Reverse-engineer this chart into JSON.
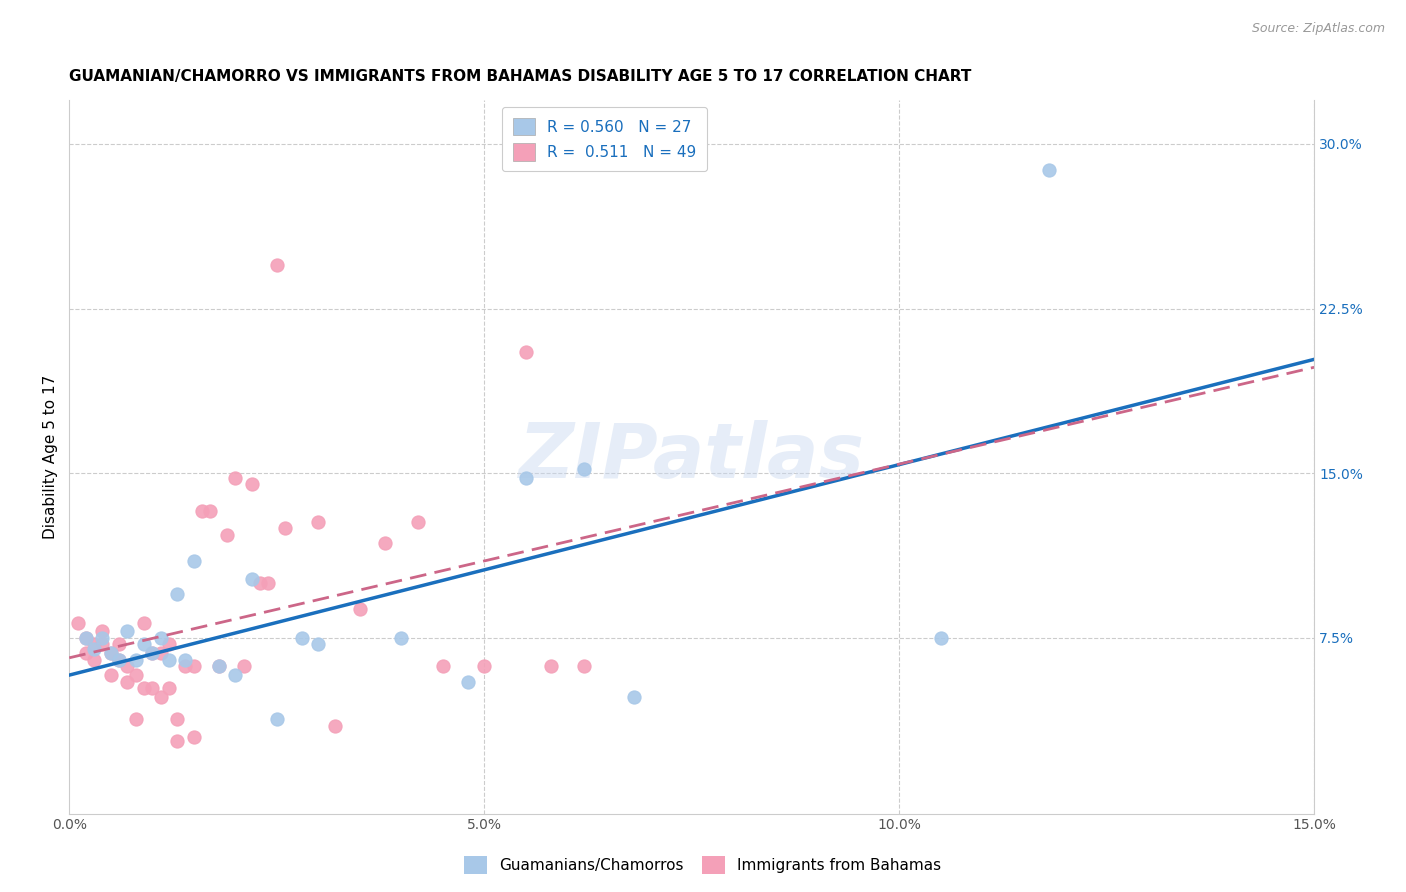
{
  "title": "GUAMANIAN/CHAMORRO VS IMMIGRANTS FROM BAHAMAS DISABILITY AGE 5 TO 17 CORRELATION CHART",
  "source": "Source: ZipAtlas.com",
  "ylabel": "Disability Age 5 to 17",
  "xlim": [
    0.0,
    0.15
  ],
  "ylim": [
    -0.005,
    0.32
  ],
  "xticks": [
    0.0,
    0.05,
    0.1,
    0.15
  ],
  "xticklabels": [
    "0.0%",
    "5.0%",
    "10.0%",
    "15.0%"
  ],
  "yticks_right": [
    0.075,
    0.15,
    0.225,
    0.3
  ],
  "ytick_right_labels": [
    "7.5%",
    "15.0%",
    "22.5%",
    "30.0%"
  ],
  "guamanian_color": "#a8c8e8",
  "bahamas_color": "#f4a0b8",
  "line_guamanian_color": "#1a6fbd",
  "line_bahamas_color": "#cc6688",
  "R_guamanian": 0.56,
  "N_guamanian": 27,
  "R_bahamas": 0.511,
  "N_bahamas": 49,
  "guamanian_x": [
    0.002,
    0.003,
    0.004,
    0.005,
    0.006,
    0.007,
    0.008,
    0.009,
    0.01,
    0.011,
    0.012,
    0.013,
    0.014,
    0.015,
    0.018,
    0.02,
    0.022,
    0.025,
    0.028,
    0.03,
    0.04,
    0.048,
    0.055,
    0.062,
    0.068,
    0.105,
    0.118
  ],
  "guamanian_y": [
    0.075,
    0.07,
    0.075,
    0.068,
    0.065,
    0.078,
    0.065,
    0.072,
    0.068,
    0.075,
    0.065,
    0.095,
    0.065,
    0.11,
    0.062,
    0.058,
    0.102,
    0.038,
    0.075,
    0.072,
    0.075,
    0.055,
    0.148,
    0.152,
    0.048,
    0.075,
    0.288
  ],
  "bahamas_x": [
    0.001,
    0.002,
    0.002,
    0.003,
    0.003,
    0.004,
    0.004,
    0.005,
    0.005,
    0.006,
    0.006,
    0.007,
    0.007,
    0.008,
    0.008,
    0.009,
    0.009,
    0.01,
    0.01,
    0.011,
    0.011,
    0.012,
    0.012,
    0.013,
    0.013,
    0.014,
    0.015,
    0.015,
    0.016,
    0.017,
    0.018,
    0.019,
    0.02,
    0.021,
    0.022,
    0.023,
    0.024,
    0.025,
    0.026,
    0.03,
    0.032,
    0.035,
    0.038,
    0.042,
    0.045,
    0.05,
    0.055,
    0.058,
    0.062
  ],
  "bahamas_y": [
    0.082,
    0.075,
    0.068,
    0.072,
    0.065,
    0.078,
    0.072,
    0.068,
    0.058,
    0.065,
    0.072,
    0.062,
    0.055,
    0.058,
    0.038,
    0.082,
    0.052,
    0.068,
    0.052,
    0.048,
    0.068,
    0.072,
    0.052,
    0.038,
    0.028,
    0.062,
    0.062,
    0.03,
    0.133,
    0.133,
    0.062,
    0.122,
    0.148,
    0.062,
    0.145,
    0.1,
    0.1,
    0.245,
    0.125,
    0.128,
    0.035,
    0.088,
    0.118,
    0.128,
    0.062,
    0.062,
    0.205,
    0.062,
    0.062
  ],
  "background_color": "#ffffff",
  "grid_color": "#cccccc",
  "watermark_text": "ZIPatlas",
  "legend_labels": [
    "Guamanians/Chamorros",
    "Immigrants from Bahamas"
  ],
  "title_fontsize": 11,
  "axis_label_fontsize": 11,
  "tick_fontsize": 10,
  "legend_fontsize": 11,
  "source_fontsize": 9
}
